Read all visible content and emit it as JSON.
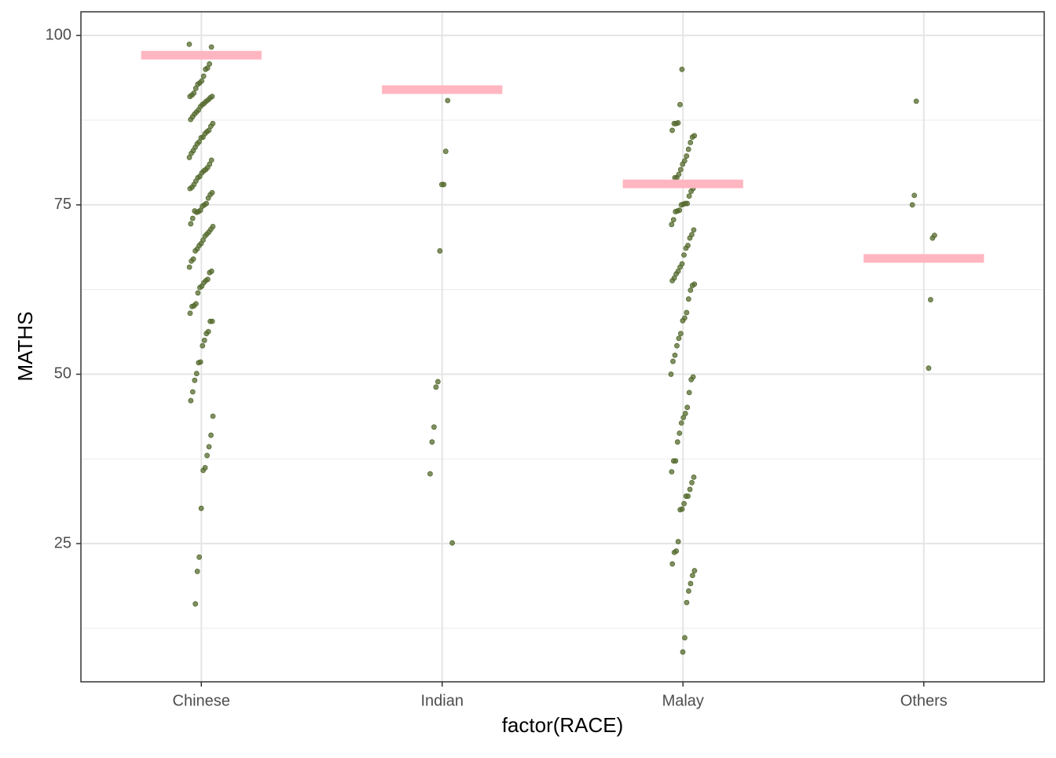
{
  "chart_data": {
    "type": "strip",
    "xlabel": "factor(RACE)",
    "ylabel": "MATHS",
    "categories": [
      "Chinese",
      "Indian",
      "Malay",
      "Others"
    ],
    "points": [
      [
        98.7,
        98.3,
        95.8,
        95.2,
        95,
        94,
        93.3,
        93,
        92.8,
        92.2,
        91.5,
        91.2,
        91,
        91,
        90.8,
        90.5,
        90.3,
        90,
        89.8,
        89.5,
        89,
        88.7,
        88.4,
        88,
        87.6,
        87,
        86.6,
        86,
        85.8,
        85.5,
        85,
        84.9,
        84.3,
        84,
        83.5,
        83,
        82.6,
        82,
        81.6,
        81,
        80.5,
        80.2,
        80,
        79.7,
        79.2,
        79,
        78.5,
        78,
        77.6,
        77.4,
        76.8,
        76.5,
        76,
        75.2,
        75,
        74.8,
        74.2,
        74,
        73.9,
        74.1,
        73,
        72.2,
        71.8,
        71.4,
        71,
        70.7,
        70.4,
        69.8,
        69.3,
        69,
        68.5,
        68.2,
        67,
        66.7,
        65.8,
        65.2,
        65,
        64,
        63.8,
        63.5,
        63,
        62.8,
        62,
        60.4,
        60.1,
        60,
        59,
        57.8,
        57.8,
        56.3,
        56,
        55,
        54.2,
        51.8,
        51.7,
        50.1,
        49.1,
        47.4,
        46.1,
        43.8,
        41,
        39.3,
        38,
        36.2,
        35.8,
        30.2,
        23,
        20.9,
        16.1
      ],
      [
        90.4,
        82.9,
        78,
        78,
        68.2,
        48.9,
        48.1,
        42.2,
        40,
        35.3,
        25.1
      ],
      [
        95,
        89.8,
        87.1,
        87,
        87,
        86,
        85.2,
        85,
        84.2,
        83.2,
        82.2,
        81.5,
        81,
        80.2,
        79.5,
        79,
        79,
        78.3,
        78.2,
        77.4,
        77,
        76.3,
        75.2,
        75.2,
        75.1,
        75,
        74.2,
        74.1,
        74,
        72.8,
        72.1,
        71.3,
        70.6,
        70.1,
        69,
        68.6,
        67.6,
        66.3,
        65.8,
        65.2,
        64.8,
        64.2,
        63.8,
        63.3,
        63.1,
        62.4,
        61.1,
        59.1,
        58.3,
        57.9,
        56,
        55.3,
        54.2,
        52.8,
        51.9,
        50,
        49.6,
        49.2,
        47.3,
        45.1,
        44.2,
        43.6,
        42.8,
        41.3,
        40,
        37.2,
        37.2,
        35.6,
        34.8,
        34,
        33,
        32,
        32,
        30.9,
        30.1,
        30,
        25.3,
        23.9,
        23.7,
        22,
        21,
        20.3,
        19.1,
        18,
        16.3,
        11.1,
        9
      ],
      [
        90.3,
        76.4,
        75,
        70.5,
        70.1,
        61,
        50.9
      ]
    ],
    "summary_values": [
      97.1,
      92,
      78.1,
      67.1
    ],
    "point_color": "#556b2f",
    "summary_color": "#ffb6c1",
    "ylim": [
      4.6,
      103.5
    ],
    "yticks": [
      25,
      50,
      75,
      100
    ],
    "yminor": [
      12.5,
      37.5,
      62.5,
      87.5
    ],
    "grid": true
  }
}
